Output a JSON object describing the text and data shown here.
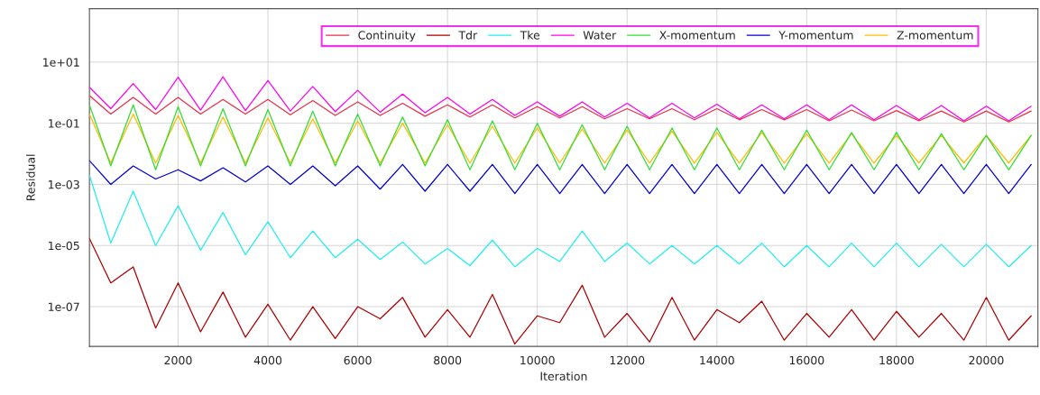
{
  "chart_data": {
    "type": "line",
    "xlabel": "Iteration",
    "ylabel": "Residual",
    "log": "y",
    "grid": true,
    "legend": "top right",
    "marker": "none",
    "line_style": "solid",
    "xlim": [
      25,
      21150
    ],
    "xticks": [
      2000,
      4000,
      6000,
      8000,
      10000,
      12000,
      14000,
      16000,
      18000,
      20000
    ],
    "ylim": [
      5e-09,
      560
    ],
    "yticks": [
      {
        "value": 10,
        "label": "1e+01"
      },
      {
        "value": 0.1,
        "label": "1e-01"
      },
      {
        "value": 0.001,
        "label": "1e-03"
      },
      {
        "value": 1e-05,
        "label": "1e-05"
      },
      {
        "value": 1e-07,
        "label": "1e-07"
      }
    ],
    "x": [
      25,
      500,
      1000,
      1500,
      2000,
      2500,
      3000,
      3500,
      4000,
      4500,
      5000,
      5500,
      6000,
      6500,
      7000,
      7500,
      8000,
      8500,
      9000,
      9500,
      10000,
      10500,
      11000,
      11500,
      12000,
      12500,
      13000,
      13500,
      14000,
      14500,
      15000,
      15500,
      16000,
      16500,
      17000,
      17500,
      18000,
      18500,
      19000,
      19500,
      20000,
      20500,
      21000
    ],
    "series": [
      {
        "name": "Continuity",
        "color": "#e8304a",
        "values": [
          0.8,
          0.2,
          0.7,
          0.2,
          0.7,
          0.2,
          0.6,
          0.2,
          0.6,
          0.19,
          0.55,
          0.18,
          0.5,
          0.18,
          0.45,
          0.17,
          0.4,
          0.16,
          0.4,
          0.15,
          0.35,
          0.15,
          0.35,
          0.14,
          0.3,
          0.14,
          0.3,
          0.13,
          0.3,
          0.13,
          0.28,
          0.13,
          0.28,
          0.12,
          0.27,
          0.12,
          0.26,
          0.12,
          0.25,
          0.11,
          0.25,
          0.11,
          0.25
        ]
      },
      {
        "name": "Tdr",
        "color": "#aa0000",
        "values": [
          1.7e-05,
          6e-07,
          2e-06,
          2e-08,
          6e-07,
          1.5e-08,
          3e-07,
          1e-08,
          1.2e-07,
          8e-09,
          1e-07,
          9e-09,
          1e-07,
          4e-08,
          2e-07,
          1e-08,
          8e-08,
          1e-08,
          2.5e-07,
          6e-09,
          5e-08,
          3e-08,
          5e-07,
          1e-08,
          6e-08,
          7e-09,
          2e-07,
          8e-09,
          8e-08,
          3e-08,
          1.5e-07,
          8e-09,
          6e-08,
          1e-08,
          8e-08,
          8e-09,
          7e-08,
          1e-08,
          6e-08,
          8e-09,
          2e-07,
          8e-09,
          5e-08
        ]
      },
      {
        "name": "Tke",
        "color": "#22eeee",
        "values": [
          0.002,
          1.2e-05,
          0.0006,
          1e-05,
          0.0002,
          7e-06,
          0.00012,
          5e-06,
          6e-05,
          4e-06,
          3e-05,
          4e-06,
          1.6e-05,
          3.5e-06,
          1.3e-05,
          2.5e-06,
          8e-06,
          2.2e-06,
          1.5e-05,
          2e-06,
          8e-06,
          3e-06,
          3e-05,
          3e-06,
          1.2e-05,
          2.5e-06,
          1e-05,
          2.5e-06,
          1e-05,
          2.5e-06,
          1.2e-05,
          2e-06,
          1e-05,
          2e-06,
          1.2e-05,
          2e-06,
          1.2e-05,
          2e-06,
          1.1e-05,
          2e-06,
          1.1e-05,
          2e-06,
          1e-05
        ]
      },
      {
        "name": "Water",
        "color": "#ff00ee",
        "values": [
          1.5,
          0.3,
          2.0,
          0.28,
          3.2,
          0.27,
          3.3,
          0.26,
          2.5,
          0.25,
          1.6,
          0.24,
          1.2,
          0.23,
          0.9,
          0.22,
          0.7,
          0.2,
          0.6,
          0.18,
          0.5,
          0.17,
          0.5,
          0.16,
          0.45,
          0.15,
          0.45,
          0.15,
          0.42,
          0.14,
          0.4,
          0.14,
          0.4,
          0.13,
          0.4,
          0.13,
          0.38,
          0.13,
          0.38,
          0.12,
          0.36,
          0.12,
          0.36
        ]
      },
      {
        "name": "X-momentum",
        "color": "#33dd33",
        "values": [
          0.4,
          0.004,
          0.4,
          0.003,
          0.35,
          0.004,
          0.3,
          0.004,
          0.28,
          0.004,
          0.25,
          0.004,
          0.2,
          0.004,
          0.16,
          0.004,
          0.13,
          0.003,
          0.12,
          0.003,
          0.1,
          0.003,
          0.09,
          0.003,
          0.08,
          0.003,
          0.07,
          0.003,
          0.07,
          0.003,
          0.06,
          0.003,
          0.06,
          0.003,
          0.05,
          0.003,
          0.05,
          0.003,
          0.045,
          0.003,
          0.04,
          0.003,
          0.04
        ]
      },
      {
        "name": "Y-momentum",
        "color": "#0000cc",
        "values": [
          0.006,
          0.001,
          0.004,
          0.0015,
          0.003,
          0.0013,
          0.0035,
          0.0012,
          0.004,
          0.001,
          0.004,
          0.0009,
          0.004,
          0.0007,
          0.0045,
          0.0006,
          0.0045,
          0.0006,
          0.0045,
          0.0005,
          0.0045,
          0.0005,
          0.0045,
          0.0005,
          0.0045,
          0.0005,
          0.0045,
          0.0005,
          0.0045,
          0.0005,
          0.0045,
          0.0005,
          0.0045,
          0.0005,
          0.0045,
          0.0005,
          0.0045,
          0.0005,
          0.0045,
          0.0005,
          0.0045,
          0.0005,
          0.0045
        ]
      },
      {
        "name": "Z-momentum",
        "color": "#ffbb00",
        "values": [
          0.2,
          0.005,
          0.2,
          0.005,
          0.18,
          0.005,
          0.16,
          0.005,
          0.15,
          0.005,
          0.14,
          0.005,
          0.12,
          0.005,
          0.1,
          0.005,
          0.09,
          0.005,
          0.08,
          0.005,
          0.07,
          0.005,
          0.065,
          0.005,
          0.06,
          0.005,
          0.055,
          0.005,
          0.05,
          0.005,
          0.05,
          0.005,
          0.045,
          0.005,
          0.045,
          0.005,
          0.04,
          0.005,
          0.04,
          0.005,
          0.04,
          0.005,
          0.04
        ]
      }
    ]
  }
}
